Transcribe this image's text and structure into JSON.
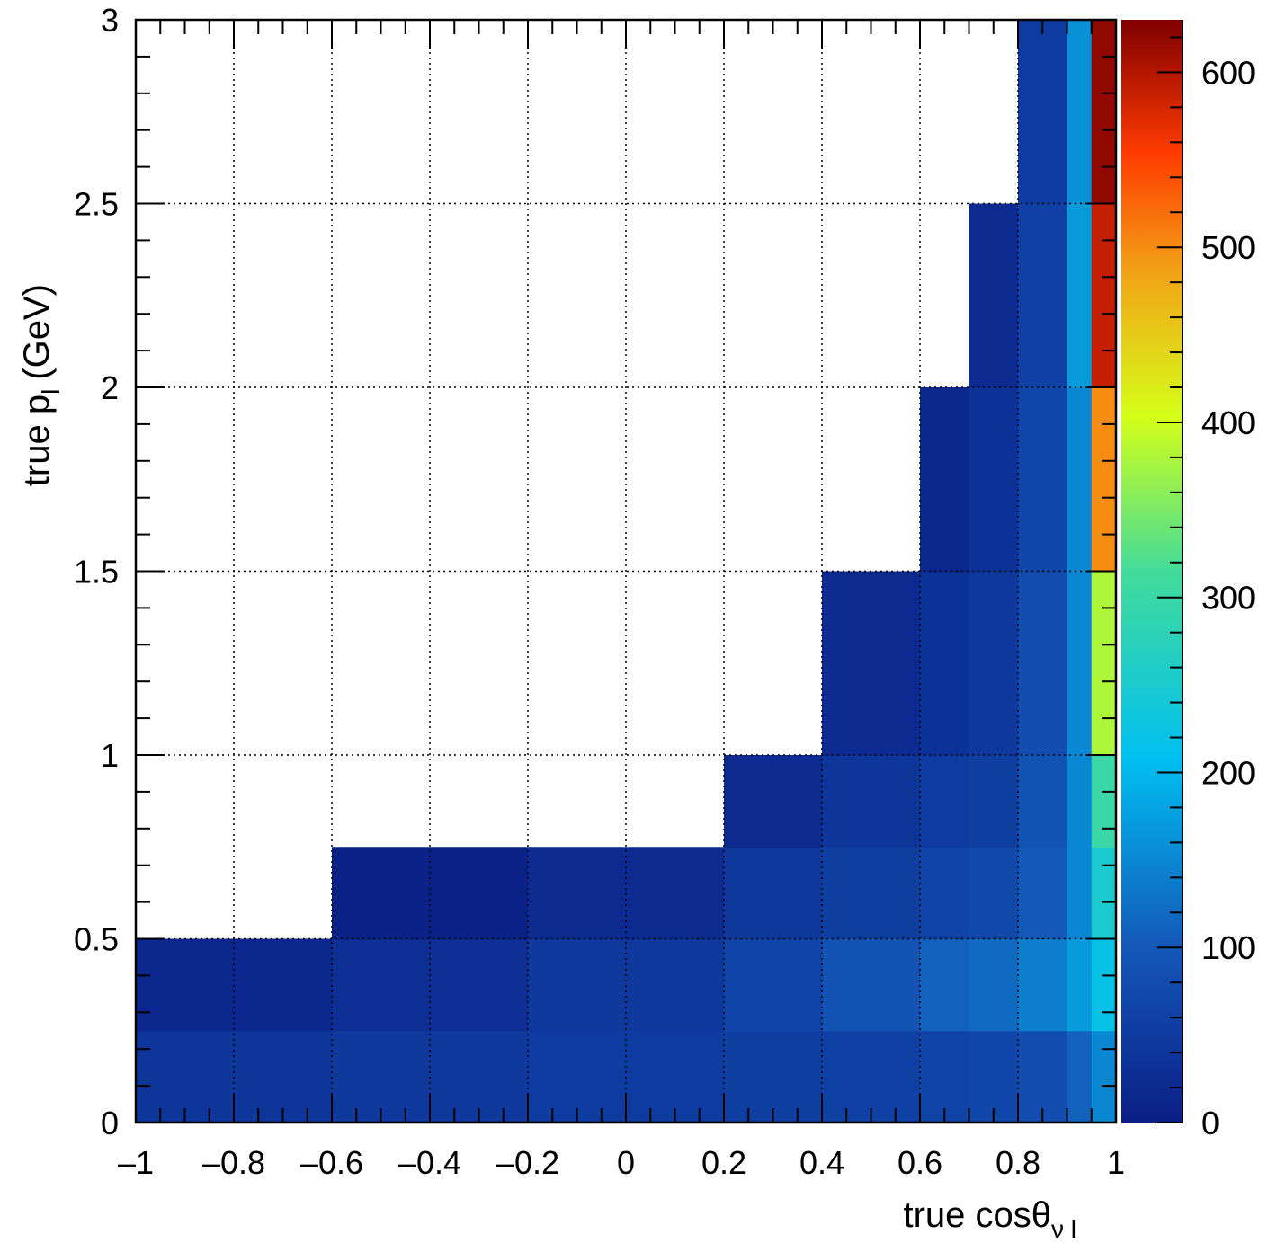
{
  "chart_data": {
    "type": "heatmap",
    "title": "",
    "xlabel": "true cosθ",
    "xlabel_sub": "ν l",
    "ylabel": "true p",
    "ylabel_sub": "l",
    "ylabel_unit": "(GeV)",
    "xlim": [
      -1,
      1
    ],
    "ylim": [
      0,
      3
    ],
    "zlim": [
      0,
      630
    ],
    "grid": true,
    "palette": "rainbow",
    "x_ticks": [
      -1,
      -0.8,
      -0.6,
      -0.4,
      -0.2,
      0,
      0.2,
      0.4,
      0.6,
      0.8,
      1
    ],
    "x_tick_labels": [
      "–1",
      "–0.8",
      "–0.6",
      "–0.4",
      "–0.2",
      "0",
      "0.2",
      "0.4",
      "0.6",
      "0.8",
      "1"
    ],
    "y_ticks": [
      0,
      0.5,
      1,
      1.5,
      2,
      2.5,
      3
    ],
    "y_tick_labels": [
      "0",
      "0.5",
      "1",
      "1.5",
      "2",
      "2.5",
      "3"
    ],
    "z_ticks": [
      0,
      100,
      200,
      300,
      400,
      500,
      600
    ],
    "z_tick_labels": [
      "0",
      "100",
      "200",
      "300",
      "400",
      "500",
      "600"
    ],
    "x_bin_edges": [
      -1,
      -0.6,
      -0.2,
      0.2,
      0.4,
      0.6,
      0.7,
      0.8,
      0.9,
      0.95,
      1
    ],
    "y_bin_edges": [
      0,
      0.25,
      0.5,
      0.75,
      1,
      1.5,
      2,
      2.5,
      3
    ],
    "z_values": [
      [
        40,
        45,
        50,
        55,
        60,
        65,
        70,
        80,
        110,
        150
      ],
      [
        15,
        30,
        45,
        65,
        90,
        110,
        120,
        140,
        170,
        220
      ],
      [
        0,
        5,
        20,
        45,
        55,
        65,
        75,
        100,
        150,
        250
      ],
      [
        0,
        0,
        0,
        20,
        40,
        50,
        55,
        90,
        150,
        300
      ],
      [
        0,
        0,
        0,
        0,
        20,
        35,
        45,
        80,
        150,
        380
      ],
      [
        0,
        0,
        0,
        0,
        0,
        15,
        35,
        70,
        150,
        500
      ],
      [
        0,
        0,
        0,
        0,
        0,
        0,
        20,
        60,
        170,
        590
      ],
      [
        0,
        0,
        0,
        0,
        0,
        0,
        0,
        50,
        160,
        620
      ]
    ]
  }
}
